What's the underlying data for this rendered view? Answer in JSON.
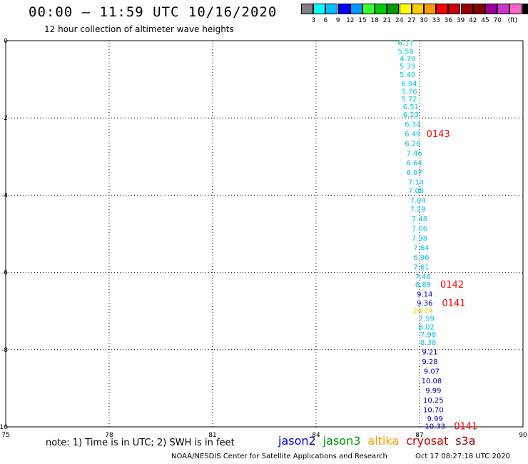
{
  "header": {
    "title": "00:00 – 11:59 UTC 10/16/2020",
    "subtitle": "12 hour collection of altimeter wave heights"
  },
  "colorbar": {
    "colors": [
      "#808080",
      "#00ffff",
      "#00bfff",
      "#0000ff",
      "#0099ff",
      "#33ff33",
      "#00cc00",
      "#009900",
      "#ffff00",
      "#ffcc00",
      "#ff9900",
      "#ff0000",
      "#cc0000",
      "#990000",
      "#800000",
      "#990099",
      "#cc33cc",
      "#ff66cc",
      "#000000"
    ],
    "ticks": [
      "3",
      "6",
      "9",
      "12",
      "15",
      "18",
      "21",
      "24",
      "27",
      "30",
      "33",
      "36",
      "39",
      "42",
      "45",
      "70",
      "(ft)"
    ]
  },
  "map": {
    "x_ticks": [
      "75",
      "78",
      "81",
      "84",
      "87",
      "90"
    ],
    "y_ticks": [
      "0",
      "-2",
      "-4",
      "-6",
      "-8",
      "-10"
    ],
    "xlim": [
      75,
      90
    ],
    "ylim": [
      -10,
      0
    ],
    "grid": true
  },
  "wave_labels": [
    {
      "text": "6.17",
      "lon": 86.6,
      "lat": -0.05,
      "color": "#00cccc"
    },
    {
      "text": "5.58",
      "lon": 86.6,
      "lat": -0.27,
      "color": "#00cccc"
    },
    {
      "text": "4.79",
      "lon": 86.65,
      "lat": -0.45,
      "color": "#00cccc"
    },
    {
      "text": "5.39",
      "lon": 86.65,
      "lat": -0.65,
      "color": "#00cccc"
    },
    {
      "text": "5.40",
      "lon": 86.65,
      "lat": -0.87,
      "color": "#00cccc"
    },
    {
      "text": "6.94",
      "lon": 86.7,
      "lat": -1.1,
      "color": "#00bfff"
    },
    {
      "text": "5.76",
      "lon": 86.7,
      "lat": -1.3,
      "color": "#00cccc"
    },
    {
      "text": "5.72",
      "lon": 86.7,
      "lat": -1.5,
      "color": "#00cccc"
    },
    {
      "text": "6.51",
      "lon": 86.75,
      "lat": -1.7,
      "color": "#00bfff"
    },
    {
      "text": "6.23",
      "lon": 86.75,
      "lat": -1.9,
      "color": "#00bfff"
    },
    {
      "text": "6.34",
      "lon": 86.8,
      "lat": -2.15,
      "color": "#00bfff"
    },
    {
      "text": "6.49",
      "lon": 86.8,
      "lat": -2.4,
      "color": "#00bfff"
    },
    {
      "text": "6.26",
      "lon": 86.8,
      "lat": -2.65,
      "color": "#00bfff"
    },
    {
      "text": "7.46",
      "lon": 86.85,
      "lat": -2.9,
      "color": "#00bfff"
    },
    {
      "text": "6.64",
      "lon": 86.85,
      "lat": -3.15,
      "color": "#00bfff"
    },
    {
      "text": "6.87",
      "lon": 86.85,
      "lat": -3.4,
      "color": "#00bfff"
    },
    {
      "text": "7.14",
      "lon": 86.9,
      "lat": -3.65,
      "color": "#00bfff"
    },
    {
      "text": "7.08",
      "lon": 86.9,
      "lat": -3.87,
      "color": "#00bfff"
    },
    {
      "text": "7.04",
      "lon": 86.95,
      "lat": -4.12,
      "color": "#00bfff"
    },
    {
      "text": "7.29",
      "lon": 86.95,
      "lat": -4.35,
      "color": "#00bfff"
    },
    {
      "text": "7.48",
      "lon": 87.0,
      "lat": -4.6,
      "color": "#00bfff"
    },
    {
      "text": "7.06",
      "lon": 87.0,
      "lat": -4.85,
      "color": "#00bfff"
    },
    {
      "text": "7.98",
      "lon": 87.0,
      "lat": -5.1,
      "color": "#00bfff"
    },
    {
      "text": "7.64",
      "lon": 87.05,
      "lat": -5.35,
      "color": "#00bfff"
    },
    {
      "text": "6.96",
      "lon": 87.05,
      "lat": -5.6,
      "color": "#00bfff"
    },
    {
      "text": "7.61",
      "lon": 87.05,
      "lat": -5.85,
      "color": "#00bfff"
    },
    {
      "text": "7.46",
      "lon": 87.1,
      "lat": -6.1,
      "color": "#00bfff"
    },
    {
      "text": "6.89",
      "lon": 87.1,
      "lat": -6.3,
      "color": "#00bfff"
    },
    {
      "text": "9.14",
      "lon": 87.15,
      "lat": -6.55,
      "color": "#0000cc"
    },
    {
      "text": "9.36",
      "lon": 87.15,
      "lat": -6.78,
      "color": "#0000cc"
    },
    {
      "text": "24.24",
      "lon": 87.1,
      "lat": -6.98,
      "color": "#ffcc00"
    },
    {
      "text": "7.59",
      "lon": 87.2,
      "lat": -7.18,
      "color": "#00bfff"
    },
    {
      "text": "8.02",
      "lon": 87.2,
      "lat": -7.4,
      "color": "#00bfff"
    },
    {
      "text": "7.98",
      "lon": 87.25,
      "lat": -7.6,
      "color": "#00bfff"
    },
    {
      "text": "8.38",
      "lon": 87.25,
      "lat": -7.8,
      "color": "#00bfff"
    },
    {
      "text": "9.21",
      "lon": 87.3,
      "lat": -8.05,
      "color": "#0000cc"
    },
    {
      "text": "9.28",
      "lon": 87.3,
      "lat": -8.3,
      "color": "#0000cc"
    },
    {
      "text": "9.07",
      "lon": 87.35,
      "lat": -8.55,
      "color": "#0000cc"
    },
    {
      "text": "10.08",
      "lon": 87.35,
      "lat": -8.8,
      "color": "#0000cc"
    },
    {
      "text": "9.99",
      "lon": 87.4,
      "lat": -9.05,
      "color": "#0000cc"
    },
    {
      "text": "10.25",
      "lon": 87.4,
      "lat": -9.3,
      "color": "#0000cc"
    },
    {
      "text": "10.70",
      "lon": 87.4,
      "lat": -9.55,
      "color": "#0000cc"
    },
    {
      "text": "9.99",
      "lon": 87.45,
      "lat": -9.78,
      "color": "#0000cc"
    },
    {
      "text": "10.33",
      "lon": 87.45,
      "lat": -9.97,
      "color": "#0000cc"
    }
  ],
  "time_labels": [
    {
      "text": "0143",
      "lon": 87.2,
      "lat": -2.4
    },
    {
      "text": "0142",
      "lon": 87.6,
      "lat": -6.3
    },
    {
      "text": "0141",
      "lon": 87.65,
      "lat": -6.78
    },
    {
      "text": "0141",
      "lon": 88.0,
      "lat": -9.97
    }
  ],
  "footer": {
    "note": "note: 1) Time is in UTC; 2) SWH is in feet",
    "satellites": [
      {
        "name": "jason2",
        "color": "#0000cc"
      },
      {
        "name": "jason3",
        "color": "#009900"
      },
      {
        "name": "altika",
        "color": "#ff9900"
      },
      {
        "name": "cryosat",
        "color": "#cc0000"
      },
      {
        "name": "s3a",
        "color": "#990000"
      }
    ],
    "credit": "NOAA/NESDIS Center for Satellite Applications and Research",
    "timestamp": "Oct 17 08:27:18 UTC 2020"
  }
}
